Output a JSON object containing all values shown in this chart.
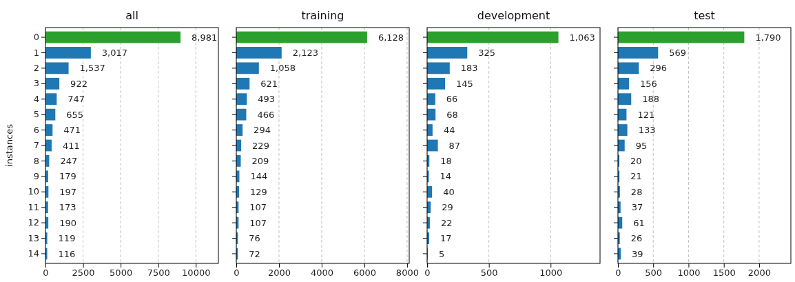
{
  "chart_data": [
    {
      "type": "bar",
      "orientation": "horizontal",
      "title": "all",
      "ylabel": "instances",
      "categories": [
        "0",
        "1",
        "2",
        "3",
        "4",
        "5",
        "6",
        "7",
        "8",
        "9",
        "10",
        "11",
        "12",
        "13",
        "14"
      ],
      "values": [
        8981,
        3017,
        1537,
        922,
        747,
        655,
        471,
        411,
        247,
        179,
        197,
        173,
        190,
        119,
        116
      ],
      "value_labels": [
        "8,981",
        "3,017",
        "1,537",
        "922",
        "747",
        "655",
        "471",
        "411",
        "247",
        "179",
        "197",
        "173",
        "190",
        "119",
        "116"
      ],
      "colors": [
        "#2ca02c",
        "#1f77b4",
        "#1f77b4",
        "#1f77b4",
        "#1f77b4",
        "#1f77b4",
        "#1f77b4",
        "#1f77b4",
        "#1f77b4",
        "#1f77b4",
        "#1f77b4",
        "#1f77b4",
        "#1f77b4",
        "#1f77b4",
        "#1f77b4"
      ],
      "xlim": [
        0,
        11500
      ],
      "xticks": [
        0,
        2500,
        5000,
        7500,
        10000
      ],
      "grid": "x"
    },
    {
      "type": "bar",
      "orientation": "horizontal",
      "title": "training",
      "categories": [
        "0",
        "1",
        "2",
        "3",
        "4",
        "5",
        "6",
        "7",
        "8",
        "9",
        "10",
        "11",
        "12",
        "13",
        "14"
      ],
      "values": [
        6128,
        2123,
        1058,
        621,
        493,
        466,
        294,
        229,
        209,
        144,
        129,
        107,
        107,
        76,
        72
      ],
      "value_labels": [
        "6,128",
        "2,123",
        "1,058",
        "621",
        "493",
        "466",
        "294",
        "229",
        "209",
        "144",
        "129",
        "107",
        "107",
        "76",
        "72"
      ],
      "colors": [
        "#2ca02c",
        "#1f77b4",
        "#1f77b4",
        "#1f77b4",
        "#1f77b4",
        "#1f77b4",
        "#1f77b4",
        "#1f77b4",
        "#1f77b4",
        "#1f77b4",
        "#1f77b4",
        "#1f77b4",
        "#1f77b4",
        "#1f77b4",
        "#1f77b4"
      ],
      "xlim": [
        0,
        8100
      ],
      "xticks": [
        0,
        2000,
        4000,
        6000,
        8000
      ],
      "grid": "x",
      "tick_labels": "x"
    },
    {
      "type": "bar",
      "orientation": "horizontal",
      "title": "development",
      "categories": [
        "0",
        "1",
        "2",
        "3",
        "4",
        "5",
        "6",
        "7",
        "8",
        "9",
        "10",
        "11",
        "12",
        "13",
        "14"
      ],
      "values": [
        1063,
        325,
        183,
        145,
        66,
        68,
        44,
        87,
        18,
        14,
        40,
        29,
        22,
        17,
        5
      ],
      "value_labels": [
        "1,063",
        "325",
        "183",
        "145",
        "66",
        "68",
        "44",
        "87",
        "18",
        "14",
        "40",
        "29",
        "22",
        "17",
        "5"
      ],
      "colors": [
        "#2ca02c",
        "#1f77b4",
        "#1f77b4",
        "#1f77b4",
        "#1f77b4",
        "#1f77b4",
        "#1f77b4",
        "#1f77b4",
        "#1f77b4",
        "#1f77b4",
        "#1f77b4",
        "#1f77b4",
        "#1f77b4",
        "#1f77b4",
        "#1f77b4"
      ],
      "xlim": [
        0,
        1400
      ],
      "xticks": [
        0,
        500,
        1000
      ],
      "grid": "x",
      "tick_labels": "x"
    },
    {
      "type": "bar",
      "orientation": "horizontal",
      "title": "test",
      "categories": [
        "0",
        "1",
        "2",
        "3",
        "4",
        "5",
        "6",
        "7",
        "8",
        "9",
        "10",
        "11",
        "12",
        "13",
        "14"
      ],
      "values": [
        1790,
        569,
        296,
        156,
        188,
        121,
        133,
        95,
        20,
        21,
        28,
        37,
        61,
        26,
        39
      ],
      "value_labels": [
        "1,790",
        "569",
        "296",
        "156",
        "188",
        "121",
        "133",
        "95",
        "20",
        "21",
        "28",
        "37",
        "61",
        "26",
        "39"
      ],
      "colors": [
        "#2ca02c",
        "#1f77b4",
        "#1f77b4",
        "#1f77b4",
        "#1f77b4",
        "#1f77b4",
        "#1f77b4",
        "#1f77b4",
        "#1f77b4",
        "#1f77b4",
        "#1f77b4",
        "#1f77b4",
        "#1f77b4",
        "#1f77b4",
        "#1f77b4"
      ],
      "xlim": [
        0,
        2450
      ],
      "xticks": [
        0,
        500,
        1000,
        1500,
        2000
      ],
      "grid": "x",
      "tick_labels": "x"
    }
  ]
}
